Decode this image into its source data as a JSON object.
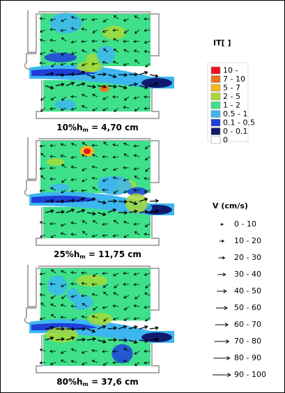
{
  "panels": [
    {
      "caption": {
        "prefix": "10%h",
        "sub": "m",
        "suffix": " = 4,70 cm"
      }
    },
    {
      "caption": {
        "prefix": "25%h",
        "sub": "m",
        "suffix": " = 11,75 cm"
      }
    },
    {
      "caption": {
        "prefix": "80%h",
        "sub": "m",
        "suffix": " = 37,6 cm"
      }
    }
  ],
  "it_legend": {
    "title": "IT[ ]",
    "items": [
      {
        "label": "10 -",
        "color": "#e8141c"
      },
      {
        "label": "7 - 10",
        "color": "#f2731c"
      },
      {
        "label": "5 - 7",
        "color": "#f5b51e"
      },
      {
        "label": "2 - 5",
        "color": "#a6d936"
      },
      {
        "label": "1 - 2",
        "color": "#3ee08a"
      },
      {
        "label": "0.5 - 1",
        "color": "#3db6f0"
      },
      {
        "label": "0.1 - 0.5",
        "color": "#1f3fd9"
      },
      {
        "label": "0 - 0.1",
        "color": "#0f1a6e"
      },
      {
        "label": "0",
        "color": "#ffffff"
      }
    ]
  },
  "v_legend": {
    "title": "V (cm/s)",
    "items": [
      "0 - 10",
      "10 - 20",
      "20 - 30",
      "30 - 40",
      "40 - 50",
      "50 - 60",
      "60 - 70",
      "70 - 80",
      "80 - 90",
      "90 - 100"
    ]
  }
}
